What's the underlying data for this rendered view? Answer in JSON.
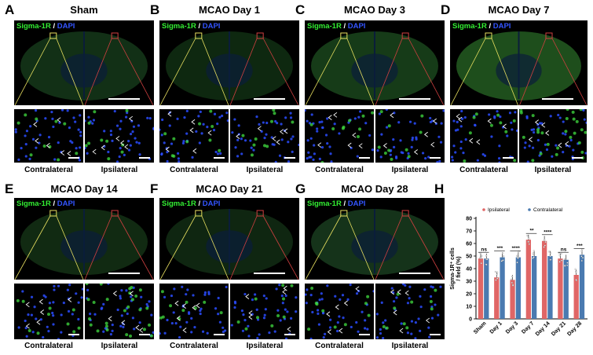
{
  "figure": {
    "stain": {
      "marker": "Sigma-1R",
      "sep": " / ",
      "counter": "DAPI"
    },
    "panels": [
      {
        "letter": "A",
        "title": "Sham",
        "z1": "Contralateral",
        "z2": "Ipsilateral"
      },
      {
        "letter": "B",
        "title": "MCAO Day 1",
        "z1": "Contralateral",
        "z2": "Ipsilateral"
      },
      {
        "letter": "C",
        "title": "MCAO Day 3",
        "z1": "Contralateral",
        "z2": "Ipsilateral"
      },
      {
        "letter": "D",
        "title": "MCAO Day 7",
        "z1": "Contralateral",
        "z2": "Ipsilateral"
      },
      {
        "letter": "E",
        "title": "MCAO Day 14",
        "z1": "Contralateral",
        "z2": "Ipsilateral"
      },
      {
        "letter": "F",
        "title": "MCAO Day 21",
        "z1": "Contralateral",
        "z2": "Ipsilateral"
      },
      {
        "letter": "G",
        "title": "MCAO Day 28",
        "z1": "Contralateral",
        "z2": "Ipsilateral"
      }
    ],
    "chart_letter": "H"
  },
  "chart_data": {
    "type": "bar",
    "categories": [
      "Sham",
      "Day 1",
      "Day 3",
      "Day 7",
      "Day 14",
      "Day 21",
      "Day 28"
    ],
    "series": [
      {
        "name": "Ipsilateral",
        "color": "#e06666",
        "values": [
          48,
          33,
          31,
          63,
          62,
          48,
          35
        ]
      },
      {
        "name": "Contralateral",
        "color": "#4a7ab0",
        "values": [
          48,
          49,
          49,
          50,
          50,
          47,
          51
        ]
      }
    ],
    "significance": [
      "ns",
      "***",
      "****",
      "**",
      "****",
      "ns",
      "***"
    ],
    "ylabel_line1": "Sigma-1R⁺ cells",
    "ylabel_line2": "/ field (%)",
    "ylim": [
      0,
      80
    ],
    "yticks": [
      0,
      10,
      20,
      30,
      40,
      50,
      60,
      70,
      80
    ],
    "legend": "top"
  }
}
